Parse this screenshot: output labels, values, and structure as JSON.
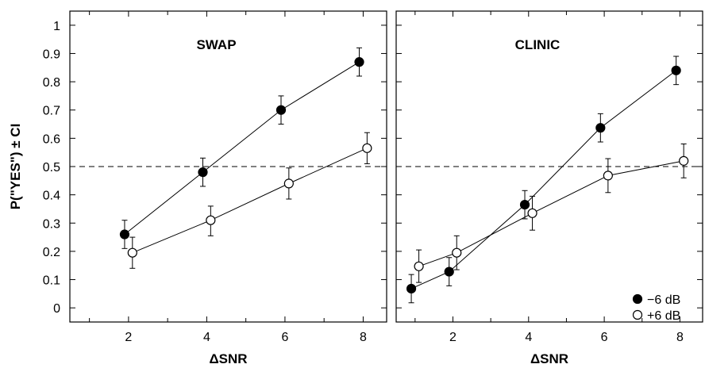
{
  "figure": {
    "ylabel": "P(\"YES\") ± CI",
    "legend": {
      "placement": "bottom-right of right panel",
      "entries": [
        {
          "label": "−6 dB",
          "marker": "filled-circle"
        },
        {
          "label": "+6 dB",
          "marker": "open-circle"
        }
      ]
    }
  },
  "chart_data": [
    {
      "type": "line",
      "title": "SWAP",
      "xlabel": "ΔSNR",
      "ylabel": "P(\"YES\") ± CI",
      "xlim": [
        0.5,
        8.6
      ],
      "ylim": [
        -0.05,
        1.05
      ],
      "xticks": [
        2,
        4,
        6,
        8
      ],
      "xtick_labels": [
        "2",
        "4",
        "6",
        "8"
      ],
      "yticks": [
        0,
        0.1,
        0.2,
        0.3,
        0.4,
        0.5,
        0.6,
        0.7,
        0.8,
        0.9,
        1
      ],
      "ytick_labels": [
        "0",
        "0.1",
        "0.2",
        "0.3",
        "0.4",
        "0.5",
        "0.6",
        "0.7",
        "0.8",
        "0.9",
        "1"
      ],
      "reference_line": {
        "y": 0.5,
        "style": "dashed"
      },
      "series": [
        {
          "name": "−6 dB",
          "marker": "filled",
          "x": [
            1.9,
            3.9,
            5.9,
            7.9
          ],
          "y": [
            0.26,
            0.48,
            0.7,
            0.87
          ],
          "ci_low": [
            0.21,
            0.43,
            0.65,
            0.82
          ],
          "ci_high": [
            0.31,
            0.53,
            0.75,
            0.92
          ]
        },
        {
          "name": "+6 dB",
          "marker": "open",
          "x": [
            2.1,
            4.1,
            6.1,
            8.1
          ],
          "y": [
            0.195,
            0.31,
            0.44,
            0.565
          ],
          "ci_low": [
            0.14,
            0.255,
            0.385,
            0.51
          ],
          "ci_high": [
            0.25,
            0.36,
            0.495,
            0.62
          ]
        }
      ]
    },
    {
      "type": "line",
      "title": "CLINIC",
      "xlabel": "ΔSNR",
      "ylabel": "",
      "xlim": [
        0.5,
        8.6
      ],
      "ylim": [
        -0.05,
        1.05
      ],
      "xticks": [
        2,
        4,
        6,
        8
      ],
      "xtick_labels": [
        "2",
        "4",
        "6",
        "8"
      ],
      "yticks": [
        0,
        0.1,
        0.2,
        0.3,
        0.4,
        0.5,
        0.6,
        0.7,
        0.8,
        0.9,
        1
      ],
      "ytick_labels": [],
      "reference_line": {
        "y": 0.5,
        "style": "dashed"
      },
      "series": [
        {
          "name": "−6 dB",
          "marker": "filled",
          "x": [
            0.9,
            1.9,
            3.9,
            5.9,
            7.9
          ],
          "y": [
            0.068,
            0.128,
            0.365,
            0.637,
            0.84
          ],
          "ci_low": [
            0.018,
            0.078,
            0.315,
            0.587,
            0.79
          ],
          "ci_high": [
            0.118,
            0.178,
            0.415,
            0.687,
            0.89
          ]
        },
        {
          "name": "+6 dB",
          "marker": "open",
          "x": [
            1.1,
            2.1,
            4.1,
            6.1,
            8.1
          ],
          "y": [
            0.147,
            0.195,
            0.335,
            0.468,
            0.52
          ],
          "ci_low": [
            0.09,
            0.135,
            0.275,
            0.408,
            0.46
          ],
          "ci_high": [
            0.205,
            0.255,
            0.395,
            0.528,
            0.58
          ]
        }
      ]
    }
  ]
}
